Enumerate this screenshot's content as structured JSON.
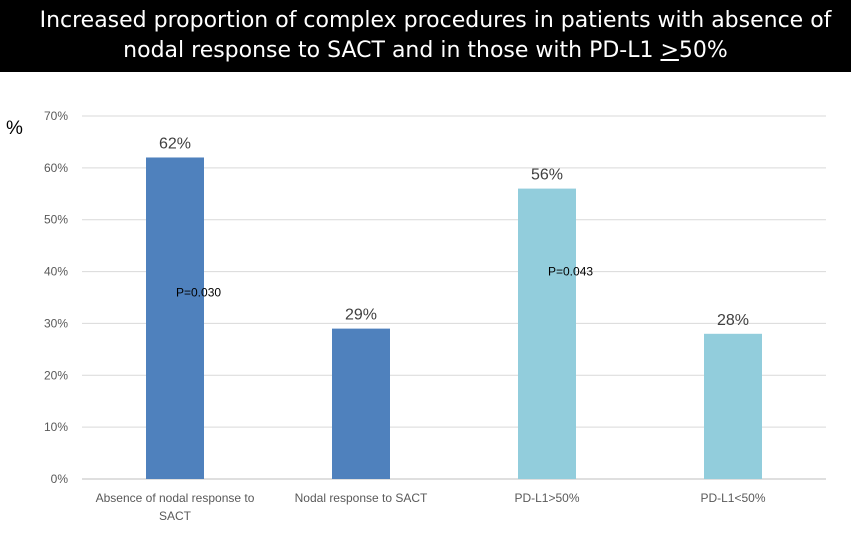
{
  "title": {
    "line1": "Increased proportion of complex procedures in patients with absence of",
    "line2_prefix": "nodal response to SACT and in those with PD-L1 ",
    "line2_underlined": ">",
    "line2_suffix": "50%"
  },
  "chart_data": {
    "type": "bar",
    "title": "Increased proportion of complex procedures in patients with absence of nodal response to SACT and in those with PD-L1 >50%",
    "ylabel": "%",
    "xlabel": "",
    "ylim": [
      0,
      70
    ],
    "yticks": [
      "0%",
      "10%",
      "20%",
      "30%",
      "40%",
      "50%",
      "60%",
      "70%"
    ],
    "grid": true,
    "categories": [
      [
        "Absence of nodal response to",
        "SACT"
      ],
      [
        "Nodal response to SACT"
      ],
      [
        "PD-L1>50%"
      ],
      [
        "PD-L1<50%"
      ]
    ],
    "values": [
      62,
      29,
      56,
      28
    ],
    "data_labels": [
      "62%",
      "29%",
      "56%",
      "28%"
    ],
    "colors": [
      "#4f81bd",
      "#4f81bd",
      "#92cddc",
      "#92cddc"
    ],
    "annotations": [
      {
        "text": "P=0.030",
        "between": [
          0,
          1
        ],
        "y": 36
      },
      {
        "text": "P=0.043",
        "between": [
          2,
          3
        ],
        "y": 40
      }
    ]
  }
}
